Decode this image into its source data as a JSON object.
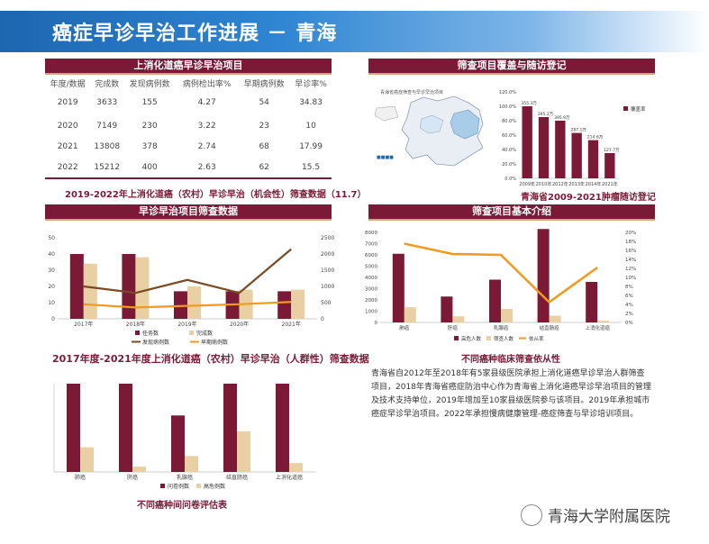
{
  "page_title": "癌症早诊早治工作进展 － 青海",
  "colors": {
    "maroon": "#7a1a36",
    "beige": "#e8cfa4",
    "orange": "#f29a1f",
    "brown": "#7a4a24",
    "blue": "#1d66b0"
  },
  "section1": {
    "header": "上消化道癌早诊早治项目",
    "columns": [
      "年度/数据",
      "完成数",
      "发现病例数",
      "病例检出率%",
      "早期病例数",
      "早诊率%"
    ],
    "rows": [
      [
        "2019",
        "3633",
        "155",
        "4.27",
        "54",
        "34.83"
      ],
      [
        "2020",
        "7149",
        "230",
        "3.22",
        "23",
        "10"
      ],
      [
        "2021",
        "13808",
        "378",
        "2.74",
        "68",
        "17.99"
      ],
      [
        "2022",
        "15212",
        "400",
        "2.63",
        "62",
        "15.5"
      ]
    ],
    "caption": "2019-2022年上消化道癌（农村）早诊早治（机会性）筛查数据（11.7）"
  },
  "section2": {
    "header": "筛查项目覆盖与随访登记",
    "map_title": "青海省癌症筛查与早诊早治项目",
    "map_legend": "■■■■",
    "caption": "青海省2009-2021肿瘤随访登记",
    "chart_data": {
      "type": "bar",
      "categories": [
        "2009年",
        "2010年",
        "2012年",
        "2013年",
        "2014年",
        "2021年"
      ],
      "series": [
        {
          "name": "覆盖率",
          "values": [
            100,
            85,
            80,
            63,
            53,
            35
          ]
        }
      ],
      "data_labels": [
        "355.3万",
        "395.2万",
        "395.9万",
        "287.1万",
        "214.6万",
        "127.7万"
      ],
      "ylim": [
        0,
        120
      ],
      "y_ticks": [
        "0.0%",
        "20.0%",
        "40.0%",
        "60.0%",
        "80.0%",
        "100.0%",
        "120.0%"
      ],
      "legend_position": "right"
    }
  },
  "section3": {
    "header": "早诊早治项目筛查数据",
    "caption": "2017年度-2021年度上消化道癌（农村）早诊早治（人群性）筛查数据",
    "chart_data": {
      "type": "bar",
      "categories": [
        "2017年",
        "2018年",
        "2019年",
        "2020年",
        "2021年"
      ],
      "series": [
        {
          "name": "任务数",
          "axis": "left",
          "values": [
            40,
            40,
            17,
            17,
            17
          ]
        },
        {
          "name": "完成数",
          "axis": "left",
          "values": [
            34,
            38,
            20,
            18,
            18
          ]
        },
        {
          "name": "发现病例数",
          "axis": "right",
          "type": "line",
          "values": [
            1000,
            800,
            1200,
            800,
            2150
          ]
        },
        {
          "name": "早期病例数",
          "axis": "right",
          "type": "line",
          "values": [
            450,
            350,
            400,
            450,
            520
          ]
        }
      ],
      "left_ticks": [
        "0",
        "10",
        "20",
        "30",
        "40",
        "50"
      ],
      "right_ticks": [
        "0",
        "500",
        "1000",
        "1500",
        "2000",
        "2500"
      ],
      "ylim_left": [
        0,
        50
      ],
      "ylim_right": [
        0,
        2500
      ],
      "legend_position": "bottom"
    }
  },
  "section4": {
    "caption": "不同癌种间问卷评估表",
    "chart_data": {
      "type": "bar",
      "categories": [
        "肺癌",
        "肝癌",
        "乳腺癌",
        "结直肠癌",
        "上消化道癌"
      ],
      "series": [
        {
          "name": "问卷例数",
          "values": [
            2500,
            2500,
            1600,
            2500,
            2500
          ]
        },
        {
          "name": "高危例数",
          "values": [
            700,
            150,
            450,
            1150,
            250
          ]
        }
      ],
      "ylim": [
        0,
        2500
      ],
      "legend_position": "bottom"
    }
  },
  "section5": {
    "header": "筛查项目基本介绍",
    "caption": "不同癌种临床筛查依从性",
    "chart_data": {
      "type": "bar",
      "categories": [
        "肺癌",
        "肝癌",
        "乳腺癌",
        "结直肠癌",
        "上消化道癌"
      ],
      "series": [
        {
          "name": "高危人数",
          "axis": "left",
          "values": [
            6100,
            2300,
            3800,
            8300,
            3600
          ]
        },
        {
          "name": "筛查人数",
          "axis": "left",
          "values": [
            1350,
            550,
            1200,
            600,
            150
          ]
        },
        {
          "name": "依从率",
          "axis": "right",
          "type": "line",
          "values": [
            17.5,
            15.2,
            15.0,
            4.5,
            12.2
          ]
        }
      ],
      "left_ticks": [
        "0",
        "1000",
        "2000",
        "3000",
        "4000",
        "5000",
        "6000",
        "7000",
        "8000"
      ],
      "right_ticks": [
        "0%",
        "2%",
        "4%",
        "6%",
        "8%",
        "10%",
        "12%",
        "14%",
        "16%",
        "18%",
        "20%"
      ],
      "ylim_left": [
        0,
        8000
      ],
      "ylim_right": [
        0,
        20
      ],
      "legend_position": "bottom"
    },
    "paragraph": "青海省自2012年至2018年有5家县级医院承担上消化道癌早诊早治人群筛查项目，2018年青海省癌症防治中心作为青海省上消化道癌早诊早治项目的管理及技术支持单位，2019年增加至10家县级医院参与该项目。2019年承担城市癌症早诊早治项目。2022年承担慢病健康管理-癌症筛查与早诊培训项目。"
  },
  "watermark": "青海大学附属医院"
}
